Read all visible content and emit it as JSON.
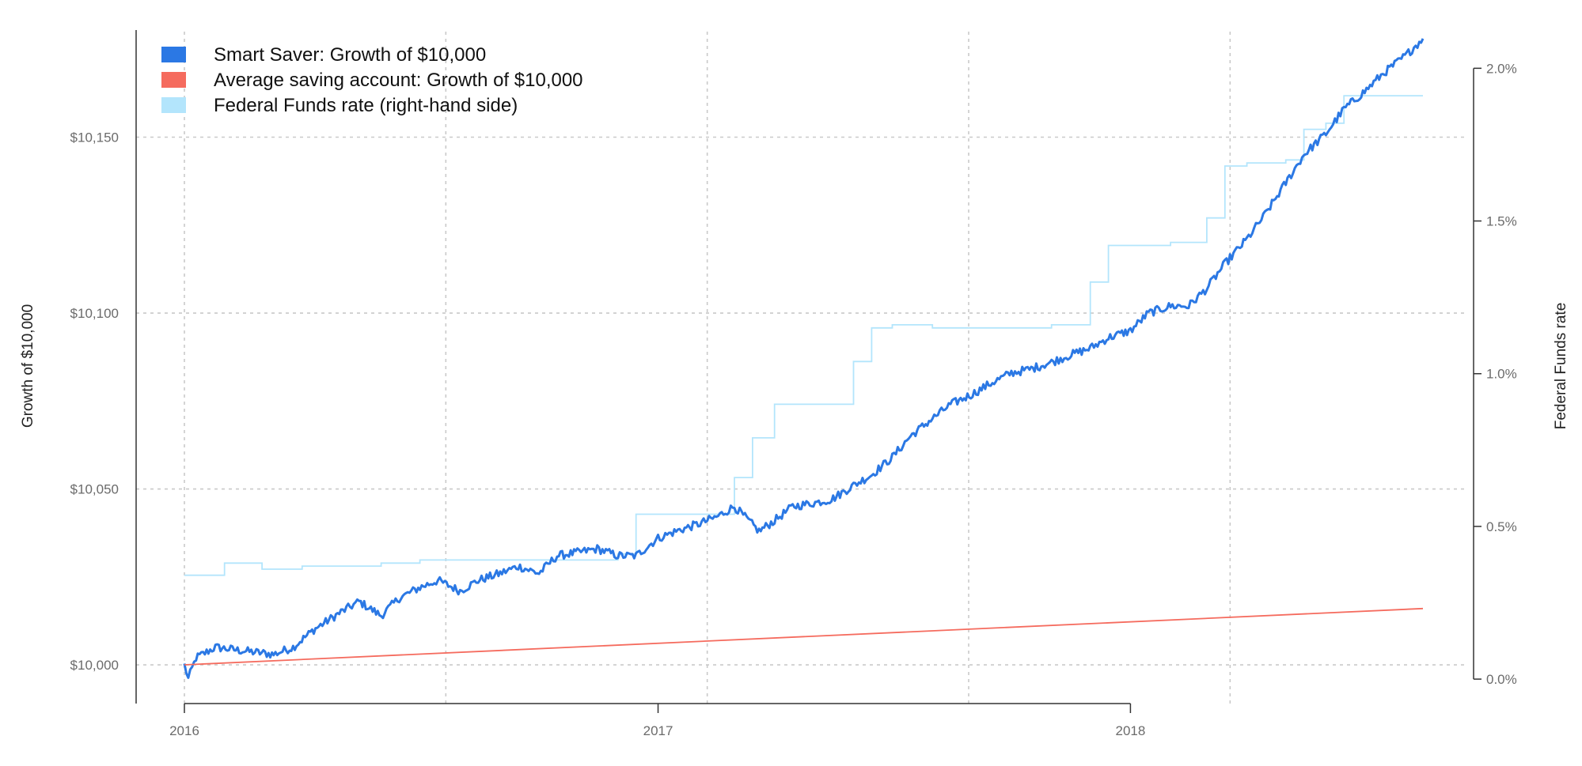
{
  "chart_data": {
    "type": "line",
    "title": "",
    "xlabel": "",
    "ylabel_left": "Growth of $10,000",
    "ylabel_right": "Federal Funds rate",
    "x_ticks": [
      "2016",
      "2017",
      "2018"
    ],
    "y_left_ticks": [
      "$10,000",
      "$10,050",
      "$10,100",
      "$10,150"
    ],
    "y_left_tick_values": [
      10000,
      10050,
      10100,
      10150
    ],
    "y_right_ticks": [
      "0.0%",
      "0.5%",
      "1.0%",
      "1.5%",
      "2.0%"
    ],
    "y_right_tick_values": [
      0.0,
      0.5,
      1.0,
      1.5,
      2.0
    ],
    "x_range": [
      "2016-01-01",
      "2018-08-15"
    ],
    "y_left_range": [
      9989,
      10180
    ],
    "y_right_range": [
      -0.08,
      2.12
    ],
    "grid": true,
    "legend_position": "top-left",
    "series": [
      {
        "name": "Smart Saver: Growth of $10,000",
        "axis": "left",
        "color": "#2b78e4",
        "points": [
          [
            "2016-01-01",
            10000
          ],
          [
            "2016-01-04",
            9996
          ],
          [
            "2016-01-10",
            10002
          ],
          [
            "2016-01-25",
            10005
          ],
          [
            "2016-02-15",
            10004
          ],
          [
            "2016-03-10",
            10003
          ],
          [
            "2016-03-25",
            10005
          ],
          [
            "2016-04-10",
            10010
          ],
          [
            "2016-05-01",
            10015
          ],
          [
            "2016-05-15",
            10018
          ],
          [
            "2016-06-01",
            10014
          ],
          [
            "2016-06-15",
            10019
          ],
          [
            "2016-07-01",
            10022
          ],
          [
            "2016-07-15",
            10024
          ],
          [
            "2016-08-01",
            10021
          ],
          [
            "2016-08-15",
            10024
          ],
          [
            "2016-09-01",
            10026
          ],
          [
            "2016-09-15",
            10028
          ],
          [
            "2016-10-01",
            10026
          ],
          [
            "2016-10-15",
            10031
          ],
          [
            "2016-11-01",
            10032
          ],
          [
            "2016-11-15",
            10033
          ],
          [
            "2016-12-01",
            10031
          ],
          [
            "2016-12-15",
            10031
          ],
          [
            "2017-01-01",
            10036
          ],
          [
            "2017-01-15",
            10038
          ],
          [
            "2017-02-01",
            10040
          ],
          [
            "2017-02-15",
            10042
          ],
          [
            "2017-03-01",
            10045
          ],
          [
            "2017-03-20",
            10038
          ],
          [
            "2017-04-01",
            10041
          ],
          [
            "2017-04-15",
            10045
          ],
          [
            "2017-05-01",
            10046
          ],
          [
            "2017-05-15",
            10047
          ],
          [
            "2017-06-01",
            10051
          ],
          [
            "2017-06-15",
            10054
          ],
          [
            "2017-07-01",
            10059
          ],
          [
            "2017-07-15",
            10065
          ],
          [
            "2017-08-01",
            10070
          ],
          [
            "2017-08-15",
            10074
          ],
          [
            "2017-09-01",
            10077
          ],
          [
            "2017-09-15",
            10080
          ],
          [
            "2017-10-01",
            10083
          ],
          [
            "2017-10-15",
            10084
          ],
          [
            "2017-11-01",
            10086
          ],
          [
            "2017-11-15",
            10088
          ],
          [
            "2017-12-01",
            10090
          ],
          [
            "2017-12-15",
            10093
          ],
          [
            "2018-01-01",
            10095
          ],
          [
            "2018-01-15",
            10100
          ],
          [
            "2018-02-01",
            10102
          ],
          [
            "2018-02-15",
            10102
          ],
          [
            "2018-03-01",
            10107
          ],
          [
            "2018-03-15",
            10114
          ],
          [
            "2018-04-01",
            10121
          ],
          [
            "2018-04-15",
            10128
          ],
          [
            "2018-05-01",
            10137
          ],
          [
            "2018-05-15",
            10145
          ],
          [
            "2018-06-01",
            10151
          ],
          [
            "2018-06-15",
            10158
          ],
          [
            "2018-07-01",
            10163
          ],
          [
            "2018-07-15",
            10168
          ],
          [
            "2018-08-01",
            10173
          ],
          [
            "2018-08-15",
            10178
          ]
        ]
      },
      {
        "name": "Average saving account: Growth of $10,000",
        "axis": "left",
        "color": "#f56b5e",
        "points": [
          [
            "2016-01-01",
            10000
          ],
          [
            "2018-08-15",
            10016
          ]
        ]
      },
      {
        "name": "Federal Funds rate (right-hand side)",
        "axis": "right",
        "color": "#b3e5fc",
        "step": true,
        "points": [
          [
            "2016-01-01",
            0.34
          ],
          [
            "2016-02-01",
            0.38
          ],
          [
            "2016-03-01",
            0.36
          ],
          [
            "2016-04-01",
            0.37
          ],
          [
            "2016-06-01",
            0.38
          ],
          [
            "2016-07-01",
            0.39
          ],
          [
            "2016-12-01",
            0.41
          ],
          [
            "2016-12-15",
            0.54
          ],
          [
            "2017-01-01",
            0.54
          ],
          [
            "2017-03-01",
            0.66
          ],
          [
            "2017-03-15",
            0.79
          ],
          [
            "2017-04-01",
            0.9
          ],
          [
            "2017-06-01",
            1.04
          ],
          [
            "2017-06-15",
            1.15
          ],
          [
            "2017-07-01",
            1.16
          ],
          [
            "2017-08-01",
            1.15
          ],
          [
            "2017-11-01",
            1.16
          ],
          [
            "2017-12-01",
            1.3
          ],
          [
            "2017-12-15",
            1.42
          ],
          [
            "2018-01-01",
            1.42
          ],
          [
            "2018-02-01",
            1.43
          ],
          [
            "2018-03-01",
            1.51
          ],
          [
            "2018-03-15",
            1.68
          ],
          [
            "2018-04-01",
            1.69
          ],
          [
            "2018-05-01",
            1.7
          ],
          [
            "2018-05-15",
            1.8
          ],
          [
            "2018-06-01",
            1.82
          ],
          [
            "2018-06-15",
            1.91
          ],
          [
            "2018-08-15",
            1.91
          ]
        ]
      }
    ]
  }
}
